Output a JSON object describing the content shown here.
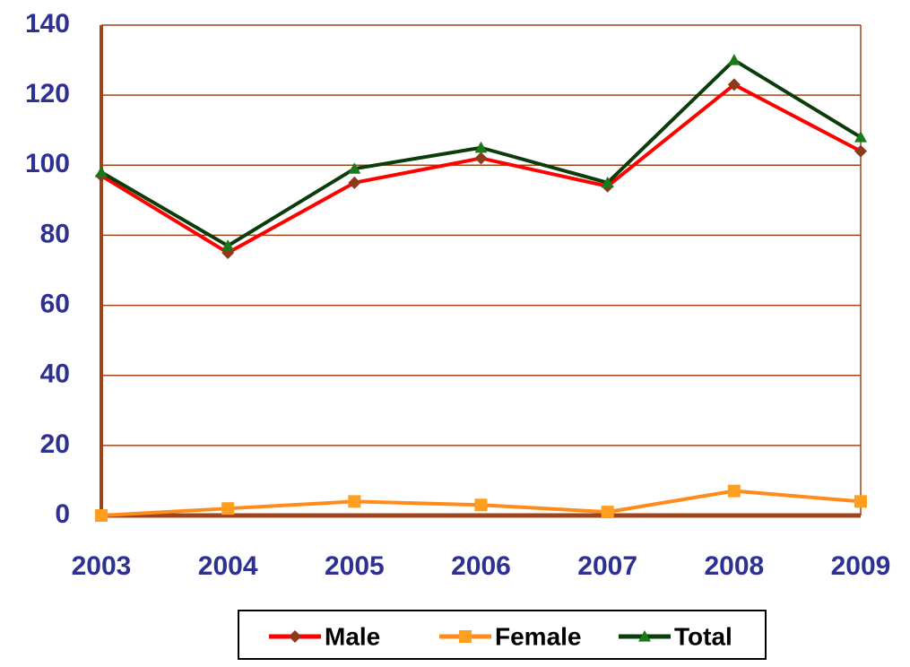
{
  "chart_data": {
    "type": "line",
    "categories": [
      "2003",
      "2004",
      "2005",
      "2006",
      "2007",
      "2008",
      "2009"
    ],
    "series": [
      {
        "name": "Male",
        "color": "#ff0000",
        "marker_color": "#8b3a1a",
        "marker": "diamond",
        "values": [
          97,
          75,
          95,
          102,
          94,
          123,
          104
        ]
      },
      {
        "name": "Female",
        "color": "#ff8c1a",
        "marker_color": "#ff9e1f",
        "marker": "square",
        "values": [
          0,
          2,
          4,
          3,
          1,
          7,
          4
        ]
      },
      {
        "name": "Total",
        "color": "#0b3d0b",
        "marker_color": "#1a7a1a",
        "marker": "triangle",
        "values": [
          98,
          77,
          99,
          105,
          95,
          130,
          108
        ]
      }
    ],
    "ylim": [
      0,
      140
    ],
    "yticks": [
      0,
      20,
      40,
      60,
      80,
      100,
      120,
      140
    ],
    "grid": true,
    "grid_color": "#a0441a",
    "axis_color": "#a0441a",
    "tick_color": "#2e3192",
    "legend": "bottom"
  }
}
